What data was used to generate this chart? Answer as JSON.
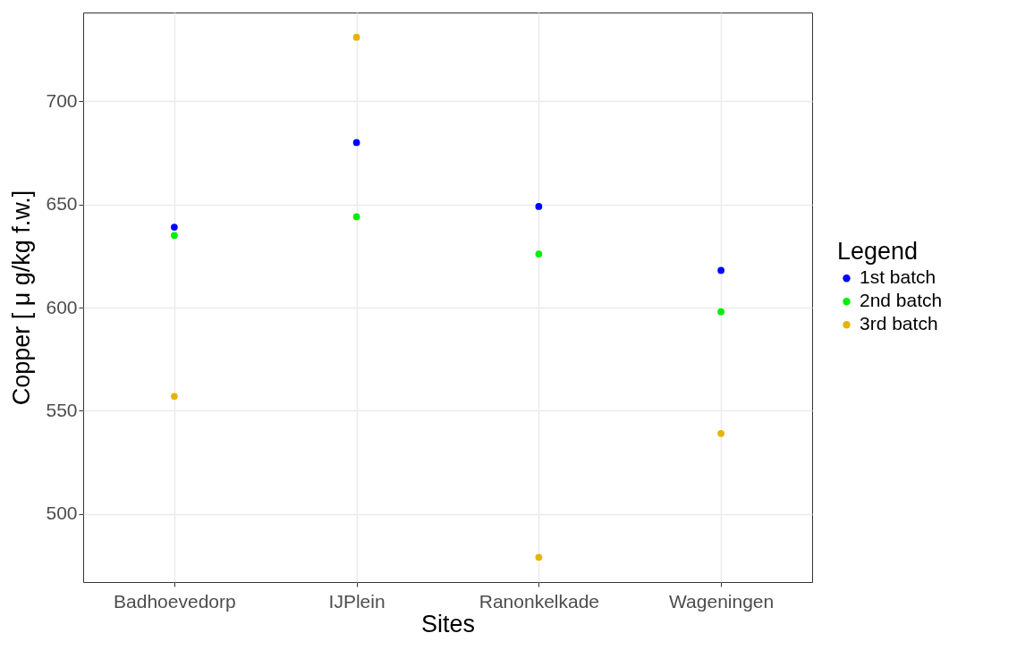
{
  "chart_data": {
    "type": "scatter",
    "xlabel": "Sites",
    "ylabel": "Copper [ μ g/kg f.w.]",
    "legend_title": "Legend",
    "categories": [
      "Badhoevedorp",
      "IJPlein",
      "Ranonkelkade",
      "Wageningen"
    ],
    "series": [
      {
        "name": "1st batch",
        "color": "#0000ff",
        "values": [
          639,
          680,
          649,
          618
        ]
      },
      {
        "name": "2nd batch",
        "color": "#00ee00",
        "values": [
          635,
          644,
          626,
          598
        ]
      },
      {
        "name": "3rd batch",
        "color": "#e6b400",
        "values": [
          557,
          731,
          479,
          539
        ]
      }
    ],
    "ylim": [
      467,
      743
    ],
    "yticks": [
      500,
      550,
      600,
      650,
      700
    ],
    "grid": true,
    "legend": "right",
    "marker": "circle"
  }
}
